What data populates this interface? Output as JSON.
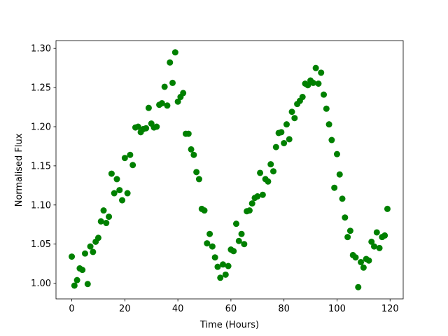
{
  "chart_data": {
    "type": "scatter",
    "xlabel": "Time (Hours)",
    "ylabel": "Normalised Flux",
    "x": [
      0,
      1,
      2,
      3,
      4,
      5,
      6,
      7,
      8,
      9,
      10,
      11,
      12,
      13,
      14,
      15,
      16,
      17,
      18,
      19,
      20,
      21,
      22,
      23,
      24,
      25,
      26,
      27,
      28,
      29,
      30,
      31,
      32,
      33,
      34,
      35,
      36,
      37,
      38,
      39,
      40,
      41,
      42,
      43,
      44,
      45,
      46,
      47,
      48,
      49,
      50,
      51,
      52,
      53,
      54,
      55,
      56,
      57,
      58,
      59,
      60,
      61,
      62,
      63,
      64,
      65,
      66,
      67,
      68,
      69,
      70,
      71,
      72,
      73,
      74,
      75,
      76,
      77,
      78,
      79,
      80,
      81,
      82,
      83,
      84,
      85,
      86,
      87,
      88,
      89,
      90,
      91,
      92,
      93,
      94,
      95,
      96,
      97,
      98,
      99,
      100,
      101,
      102,
      103,
      104,
      105,
      106,
      107,
      108,
      109,
      110,
      111,
      112,
      113,
      114,
      115,
      116,
      117,
      118,
      119
    ],
    "series": [
      {
        "color": "#008000",
        "values": [
          1.034,
          0.997,
          1.004,
          1.019,
          1.017,
          1.038,
          0.999,
          1.047,
          1.04,
          1.053,
          1.058,
          1.079,
          1.093,
          1.077,
          1.085,
          1.14,
          1.115,
          1.133,
          1.119,
          1.106,
          1.16,
          1.115,
          1.164,
          1.151,
          1.199,
          1.2,
          1.193,
          1.197,
          1.198,
          1.224,
          1.204,
          1.199,
          1.2,
          1.228,
          1.23,
          1.251,
          1.227,
          1.282,
          1.256,
          1.295,
          1.232,
          1.238,
          1.243,
          1.191,
          1.191,
          1.171,
          1.164,
          1.142,
          1.133,
          1.095,
          1.093,
          1.051,
          1.063,
          1.047,
          1.033,
          1.021,
          1.007,
          1.024,
          1.011,
          1.022,
          1.043,
          1.041,
          1.076,
          1.054,
          1.063,
          1.05,
          1.092,
          1.093,
          1.102,
          1.109,
          1.111,
          1.141,
          1.113,
          1.133,
          1.13,
          1.152,
          1.143,
          1.174,
          1.192,
          1.193,
          1.179,
          1.203,
          1.184,
          1.219,
          1.211,
          1.229,
          1.233,
          1.238,
          1.255,
          1.253,
          1.259,
          1.256,
          1.275,
          1.255,
          1.269,
          1.241,
          1.223,
          1.203,
          1.183,
          1.122,
          1.165,
          1.139,
          1.108,
          1.084,
          1.059,
          1.067,
          1.036,
          1.033,
          0.995,
          1.027,
          1.02,
          1.031,
          1.029,
          1.053,
          1.047,
          1.065,
          1.045,
          1.059,
          1.061,
          1.095
        ]
      }
    ],
    "xlim": [
      -5.95,
      124.95
    ],
    "xticks": [
      0,
      20,
      40,
      60,
      80,
      100,
      120
    ],
    "ylim": [
      0.98,
      1.31
    ],
    "yticks": [
      {
        "value": 1,
        "label": "1.00"
      },
      1.05,
      {
        "value": 1.1,
        "label": "1.10"
      },
      1.15,
      {
        "value": 1.2,
        "label": "1.20"
      },
      1.25,
      {
        "value": 1.3,
        "label": "1.30"
      }
    ]
  }
}
